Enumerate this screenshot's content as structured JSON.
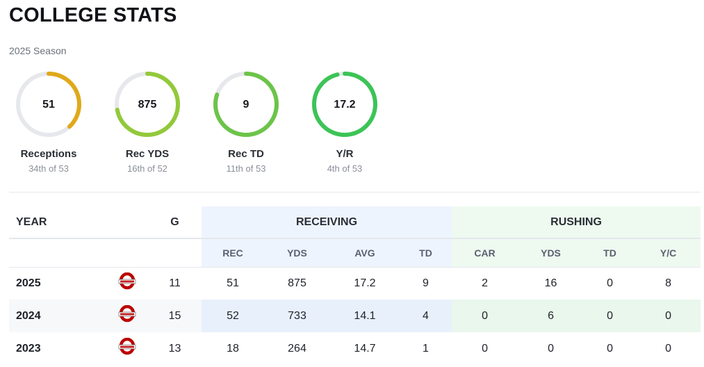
{
  "header": {
    "title": "COLLEGE STATS",
    "season": "2025 Season"
  },
  "gauges": [
    {
      "value": "51",
      "label": "Receptions",
      "rank": "34th of 53",
      "fraction": 0.38,
      "color": "#e0a91a"
    },
    {
      "value": "875",
      "label": "Rec YDS",
      "rank": "16th of 52",
      "fraction": 0.72,
      "color": "#92c93a"
    },
    {
      "value": "9",
      "label": "Rec TD",
      "rank": "11th of 53",
      "fraction": 0.8,
      "color": "#6cc449"
    },
    {
      "value": "17.2",
      "label": "Y/R",
      "rank": "4th of 53",
      "fraction": 0.96,
      "color": "#3cc456"
    }
  ],
  "table": {
    "group_headers": {
      "year": "YEAR",
      "games": "G",
      "receiving": "RECEIVING",
      "rushing": "RUSHING"
    },
    "sub_headers": {
      "rec": "REC",
      "rec_yds": "YDS",
      "avg": "AVG",
      "rec_td": "TD",
      "car": "CAR",
      "rush_yds": "YDS",
      "rush_td": "TD",
      "yc": "Y/C"
    },
    "rows": [
      {
        "year": "2025",
        "logo": "ohio-state-logo",
        "g": "11",
        "rec": "51",
        "rec_yds": "875",
        "avg": "17.2",
        "rec_td": "9",
        "car": "2",
        "rush_yds": "16",
        "rush_td": "0",
        "yc": "8"
      },
      {
        "year": "2024",
        "logo": "ohio-state-logo",
        "g": "15",
        "rec": "52",
        "rec_yds": "733",
        "avg": "14.1",
        "rec_td": "4",
        "car": "0",
        "rush_yds": "6",
        "rush_td": "0",
        "yc": "0"
      },
      {
        "year": "2023",
        "logo": "ohio-state-logo",
        "g": "13",
        "rec": "18",
        "rec_yds": "264",
        "avg": "14.7",
        "rec_td": "1",
        "car": "0",
        "rush_yds": "0",
        "rush_td": "0",
        "yc": "0"
      }
    ]
  },
  "colors": {
    "track": "#e6e8ec",
    "receiving_bg": "#eef4fe",
    "rushing_bg": "#eefaf0",
    "logo_red": "#bb0000"
  }
}
